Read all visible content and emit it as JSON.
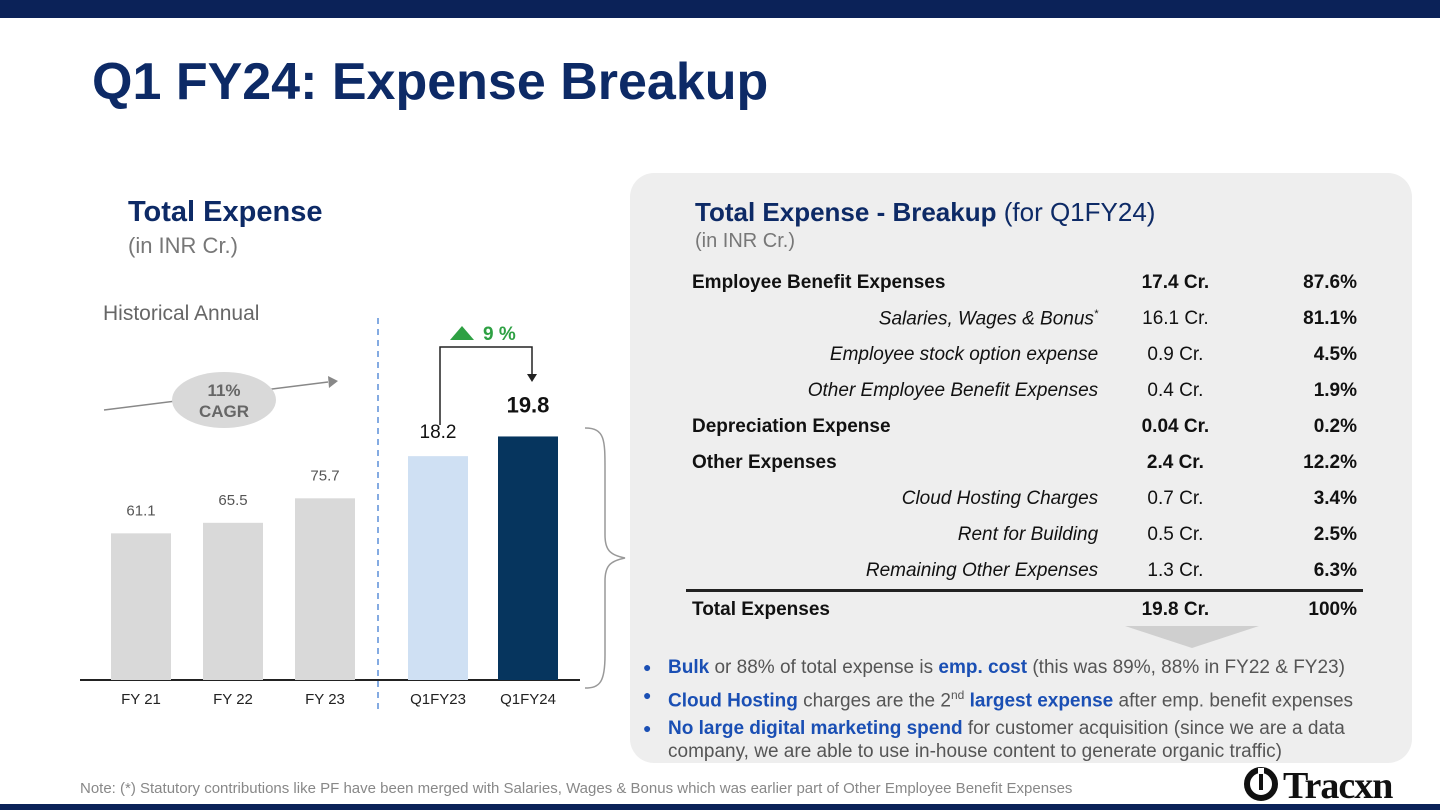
{
  "title": "Q1 FY24: Expense Breakup",
  "left": {
    "heading": "Total Expense",
    "subheading": "(in INR Cr.)",
    "historical_label": "Historical Annual",
    "cagr": [
      "11%",
      "CAGR"
    ],
    "growth_label": "9 %"
  },
  "chart_data": {
    "type": "bar",
    "categories": [
      "FY 21",
      "FY 22",
      "FY 23",
      "Q1FY23",
      "Q1FY24"
    ],
    "values": [
      61.1,
      65.5,
      75.7,
      18.2,
      19.8
    ],
    "value_labels": [
      "61.1",
      "65.5",
      "75.7",
      "18.2",
      "19.8"
    ],
    "groups": [
      "annual",
      "annual",
      "annual",
      "quarter",
      "quarter"
    ],
    "colors": [
      "#d9d9d9",
      "#d9d9d9",
      "#d9d9d9",
      "#cfe0f3",
      "#06355e"
    ],
    "title": "Total Expense",
    "ylabel": "",
    "xlabel": ""
  },
  "panel": {
    "title_bold": "Total Expense - Breakup",
    "title_rest": " (for Q1FY24)",
    "subtitle": "(in INR Cr.)",
    "rows": [
      {
        "kind": "main",
        "label": "Employee Benefit Expenses",
        "amount": "17.4 Cr.",
        "pct": "87.6%"
      },
      {
        "kind": "sub",
        "label": "Salaries, Wages & Bonus",
        "sup": "*",
        "amount": "16.1 Cr.",
        "pct": "81.1%"
      },
      {
        "kind": "sub",
        "label": "Employee stock option expense",
        "amount": "0.9 Cr.",
        "pct": "4.5%"
      },
      {
        "kind": "sub",
        "label": "Other Employee Benefit Expenses",
        "amount": "0.4 Cr.",
        "pct": "1.9%"
      },
      {
        "kind": "main",
        "label": "Depreciation Expense",
        "amount": "0.04 Cr.",
        "pct": "0.2%"
      },
      {
        "kind": "main",
        "label": "Other Expenses",
        "amount": "2.4 Cr.",
        "pct": "12.2%"
      },
      {
        "kind": "sub",
        "label": "Cloud Hosting Charges",
        "amount": "0.7 Cr.",
        "pct": "3.4%"
      },
      {
        "kind": "sub",
        "label": "Rent for Building",
        "amount": "0.5 Cr.",
        "pct": "2.5%"
      },
      {
        "kind": "sub",
        "label": "Remaining Other Expenses",
        "amount": "1.3 Cr.",
        "pct": "6.3%"
      },
      {
        "kind": "total",
        "label": "Total Expenses",
        "amount": "19.8 Cr.",
        "pct": "100%"
      }
    ],
    "bullets": [
      {
        "hl1": "Bulk",
        "t1": " or 88% of total expense is ",
        "hl2": "emp. cost",
        "t2": " (this was 89%, 88% in FY22 & FY23)"
      },
      {
        "hl1": "Cloud Hosting",
        "t1": " charges are the 2",
        "sup": "nd",
        "hl2": " largest expense",
        "t2": " after emp. benefit expenses"
      },
      {
        "hl1": "No large digital marketing spend",
        "t1": " for customer acquisition (since we are a data company, we are able to use in-house content to generate organic traffic)",
        "hl2": "",
        "t2": ""
      }
    ]
  },
  "note": "Note: (*) Statutory contributions like PF have been merged with Salaries, Wages & Bonus which was earlier part of Other Employee Benefit Expenses",
  "logo": "Tracxn"
}
